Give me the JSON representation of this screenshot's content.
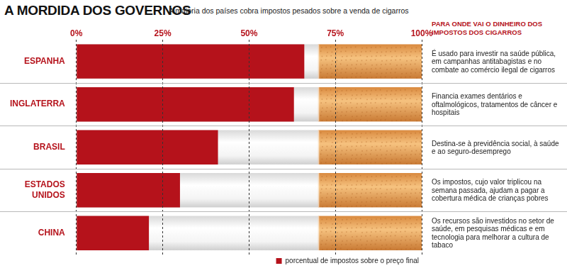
{
  "chart_data": {
    "type": "bar",
    "orientation": "horizontal",
    "title": "A MORDIDA DOS GOVERNOS",
    "subtitle": "A maioria dos países cobra impostos pesados sobre a venda de cigarros",
    "categories": [
      "ESPANHA",
      "INGLATERRA",
      "BRASIL",
      "ESTADOS UNIDOS",
      "CHINA"
    ],
    "series": [
      {
        "name": "porcentual de impostos sobre o preço final",
        "color": "#b5121b",
        "values": [
          66,
          63,
          41,
          30,
          21
        ]
      }
    ],
    "xlim": [
      0,
      100
    ],
    "xticks": [
      {
        "value": 0,
        "label": "0%"
      },
      {
        "value": 25,
        "label": "25%"
      },
      {
        "value": 50,
        "label": "50%"
      },
      {
        "value": 75,
        "label": "75%"
      },
      {
        "value": 100,
        "label": "100%"
      }
    ],
    "grid": true,
    "legend": "bottom right",
    "annotation_title": "PARA ONDE VAI O DINHEIRO DOS IMPOSTOS DOS CIGARROS",
    "annotations": [
      "É usado para investir na saúde pública, em campanhas antitabagistas e no combate ao comércio ilegal de cigarros",
      "Financia exames dentários e oftalmológicos, tratamentos de câncer e hospitais",
      "Destina-se à previdência social, à saúde e ao seguro-desemprego",
      "Os impostos, cujo valor triplicou na semana passada, ajudam a pagar a cobertura médica de crianças pobres",
      "Os recursos são investidos no setor de saúde, em pesquisas médicas e em tecnologia para melhorar a cultura de tabaco"
    ]
  }
}
